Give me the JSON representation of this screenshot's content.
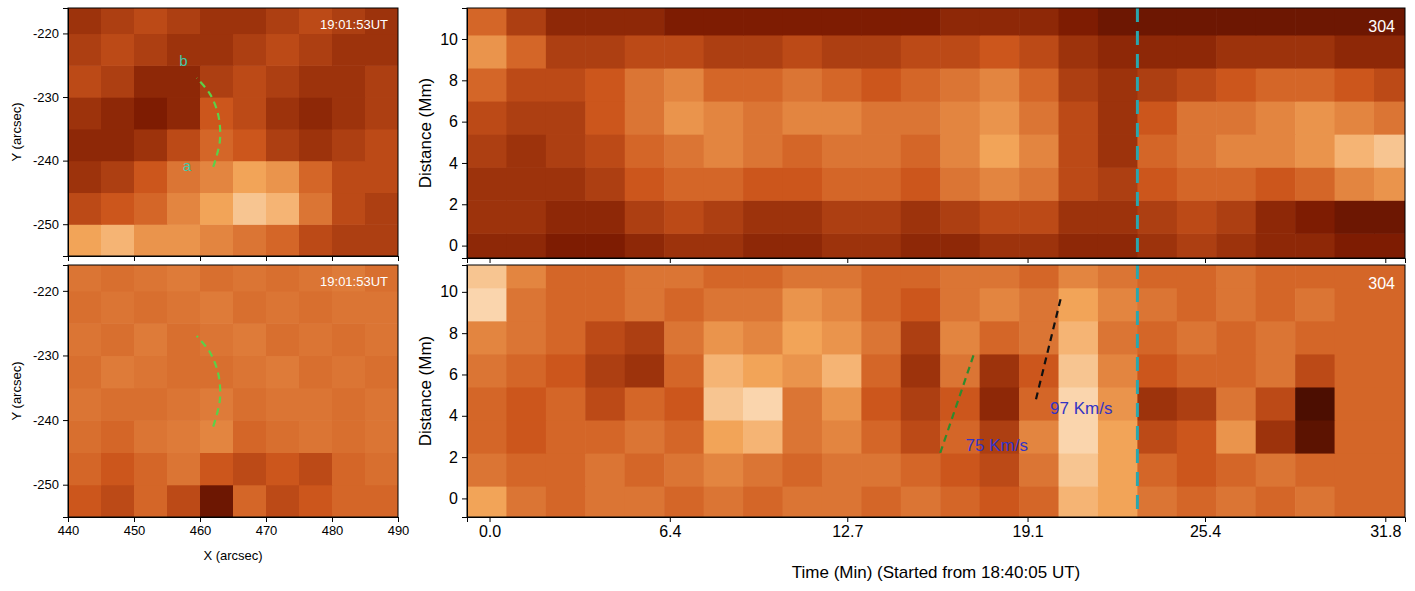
{
  "chart_data": [
    {
      "type": "heatmap",
      "title": "19:01:53UT",
      "ylabel": "Y (arcsec)",
      "xlim": [
        440,
        490
      ],
      "ylim": [
        -255,
        -216
      ],
      "xticks": [
        440,
        450,
        460,
        470,
        480,
        490
      ],
      "yticks": [
        -220,
        -230,
        -240,
        -250
      ],
      "tick_labels": "y",
      "zlim": [
        0,
        1
      ],
      "x_edges": [
        440,
        445,
        450,
        455,
        460,
        465,
        470,
        475,
        480,
        485,
        490
      ],
      "y_edges": [
        -255,
        -250,
        -245,
        -240,
        -235,
        -230,
        -225,
        -220,
        -215
      ],
      "cells": [
        [
          0.75,
          0.8,
          0.7,
          0.7,
          0.65,
          0.6,
          0.55,
          0.45,
          0.4,
          0.4
        ],
        [
          0.45,
          0.5,
          0.55,
          0.65,
          0.75,
          0.85,
          0.8,
          0.6,
          0.45,
          0.4
        ],
        [
          0.35,
          0.4,
          0.5,
          0.6,
          0.65,
          0.75,
          0.7,
          0.55,
          0.45,
          0.45
        ],
        [
          0.3,
          0.3,
          0.35,
          0.45,
          0.55,
          0.5,
          0.4,
          0.35,
          0.4,
          0.45
        ],
        [
          0.35,
          0.3,
          0.25,
          0.3,
          0.5,
          0.45,
          0.35,
          0.3,
          0.35,
          0.4
        ],
        [
          0.45,
          0.4,
          0.3,
          0.3,
          0.4,
          0.45,
          0.4,
          0.35,
          0.35,
          0.4
        ],
        [
          0.4,
          0.45,
          0.4,
          0.35,
          0.35,
          0.4,
          0.45,
          0.4,
          0.35,
          0.35
        ],
        [
          0.35,
          0.4,
          0.45,
          0.4,
          0.35,
          0.35,
          0.4,
          0.45,
          0.4,
          0.35
        ]
      ],
      "series": [
        {
          "type": "line",
          "color": "#5cd048",
          "line_style": "dashed",
          "x": [
            462.0,
            463.0,
            462.8,
            461.5,
            459.5
          ],
          "values": [
            -241,
            -237,
            -233,
            -229.5,
            -227
          ]
        }
      ],
      "annotations": [
        {
          "text": "a",
          "x": 458.0,
          "y": -241.0,
          "color": "#44c8a8"
        },
        {
          "text": "b",
          "x": 457.5,
          "y": -224.5,
          "color": "#44c8a8"
        }
      ]
    },
    {
      "type": "heatmap",
      "title": "19:01:53UT",
      "xlabel": "X (arcsec)",
      "ylabel": "Y (arcsec)",
      "xlim": [
        440,
        490
      ],
      "ylim": [
        -255,
        -216
      ],
      "xticks": [
        440,
        450,
        460,
        470,
        480,
        490
      ],
      "yticks": [
        -220,
        -230,
        -240,
        -250
      ],
      "zlim": [
        0,
        1
      ],
      "x_edges": [
        440,
        445,
        450,
        455,
        460,
        465,
        470,
        475,
        480,
        485,
        490
      ],
      "y_edges": [
        -255,
        -250,
        -245,
        -240,
        -235,
        -230,
        -225,
        -220,
        -215
      ],
      "cells": [
        [
          0.5,
          0.45,
          0.55,
          0.45,
          0.2,
          0.55,
          0.45,
          0.5,
          0.55,
          0.55
        ],
        [
          0.55,
          0.5,
          0.55,
          0.6,
          0.5,
          0.45,
          0.5,
          0.45,
          0.55,
          0.58
        ],
        [
          0.58,
          0.55,
          0.6,
          0.62,
          0.65,
          0.55,
          0.58,
          0.6,
          0.58,
          0.6
        ],
        [
          0.6,
          0.58,
          0.58,
          0.6,
          0.62,
          0.58,
          0.6,
          0.6,
          0.58,
          0.6
        ],
        [
          0.58,
          0.62,
          0.6,
          0.58,
          0.58,
          0.6,
          0.62,
          0.58,
          0.6,
          0.58
        ],
        [
          0.6,
          0.58,
          0.62,
          0.58,
          0.6,
          0.62,
          0.58,
          0.6,
          0.58,
          0.6
        ],
        [
          0.58,
          0.6,
          0.58,
          0.6,
          0.62,
          0.58,
          0.6,
          0.58,
          0.6,
          0.6
        ],
        [
          0.6,
          0.58,
          0.6,
          0.62,
          0.58,
          0.6,
          0.58,
          0.6,
          0.62,
          0.58
        ]
      ],
      "series": [
        {
          "type": "line",
          "color": "#5cd048",
          "line_style": "dashed",
          "x": [
            462.0,
            463.0,
            462.8,
            461.5,
            459.5
          ],
          "values": [
            -241,
            -237,
            -233,
            -229.5,
            -227
          ]
        }
      ]
    },
    {
      "type": "heatmap",
      "title": "304",
      "ylabel": "Distance (Mm)",
      "xlim": [
        -0.8,
        32.5
      ],
      "ylim": [
        -0.6,
        11.5
      ],
      "xticks": [
        {
          "value": 0,
          "label": "0.0"
        },
        6.4,
        12.7,
        19.1,
        25.4,
        31.8
      ],
      "yticks": [
        0,
        2,
        4,
        6,
        8,
        10
      ],
      "tick_labels": "y",
      "zlim": [
        0,
        1
      ],
      "x_edges": [
        -0.8,
        0.6,
        2.0,
        3.4,
        4.8,
        6.2,
        7.6,
        9.0,
        10.4,
        11.8,
        13.2,
        14.6,
        16.0,
        17.4,
        18.8,
        20.2,
        21.6,
        23.0,
        24.4,
        25.8,
        27.2,
        28.6,
        30.0,
        31.4,
        32.8
      ],
      "y_edges": [
        -1.0,
        0.6,
        2.2,
        3.8,
        5.4,
        7.0,
        8.6,
        10.2,
        11.8
      ],
      "cells": [
        [
          0.3,
          0.3,
          0.25,
          0.25,
          0.3,
          0.35,
          0.35,
          0.3,
          0.3,
          0.35,
          0.35,
          0.3,
          0.3,
          0.35,
          0.35,
          0.3,
          0.3,
          0.35,
          0.4,
          0.35,
          0.3,
          0.3,
          0.25,
          0.25
        ],
        [
          0.35,
          0.35,
          0.3,
          0.3,
          0.4,
          0.45,
          0.4,
          0.35,
          0.35,
          0.4,
          0.4,
          0.35,
          0.4,
          0.45,
          0.45,
          0.35,
          0.35,
          0.4,
          0.45,
          0.4,
          0.3,
          0.25,
          0.2,
          0.2
        ],
        [
          0.35,
          0.35,
          0.35,
          0.4,
          0.5,
          0.55,
          0.55,
          0.5,
          0.5,
          0.55,
          0.55,
          0.5,
          0.6,
          0.65,
          0.6,
          0.45,
          0.4,
          0.5,
          0.55,
          0.55,
          0.5,
          0.55,
          0.65,
          0.7
        ],
        [
          0.4,
          0.35,
          0.4,
          0.45,
          0.55,
          0.6,
          0.65,
          0.6,
          0.55,
          0.6,
          0.6,
          0.55,
          0.65,
          0.75,
          0.65,
          0.45,
          0.35,
          0.55,
          0.6,
          0.65,
          0.65,
          0.7,
          0.8,
          0.85
        ],
        [
          0.45,
          0.4,
          0.4,
          0.5,
          0.6,
          0.7,
          0.65,
          0.6,
          0.65,
          0.65,
          0.6,
          0.6,
          0.65,
          0.7,
          0.6,
          0.45,
          0.35,
          0.5,
          0.6,
          0.6,
          0.65,
          0.7,
          0.65,
          0.6
        ],
        [
          0.55,
          0.45,
          0.45,
          0.5,
          0.6,
          0.65,
          0.55,
          0.55,
          0.6,
          0.55,
          0.5,
          0.55,
          0.6,
          0.65,
          0.55,
          0.4,
          0.35,
          0.4,
          0.45,
          0.5,
          0.55,
          0.55,
          0.5,
          0.45
        ],
        [
          0.7,
          0.55,
          0.4,
          0.4,
          0.45,
          0.45,
          0.4,
          0.4,
          0.45,
          0.4,
          0.4,
          0.45,
          0.45,
          0.5,
          0.45,
          0.35,
          0.3,
          0.3,
          0.3,
          0.35,
          0.35,
          0.35,
          0.3,
          0.3
        ],
        [
          0.55,
          0.4,
          0.3,
          0.3,
          0.3,
          0.25,
          0.25,
          0.25,
          0.25,
          0.25,
          0.25,
          0.25,
          0.3,
          0.3,
          0.3,
          0.25,
          0.2,
          0.2,
          0.2,
          0.2,
          0.2,
          0.2,
          0.2,
          0.2
        ]
      ],
      "series": [
        {
          "type": "vline",
          "color": "#2aa6ad",
          "line_style": "dashed",
          "x": [
            23.0
          ]
        }
      ]
    },
    {
      "type": "heatmap",
      "title": "304",
      "ylabel": "Distance (Mm)",
      "xlabel": "Time (Min) (Started from 18:40:05 UT)",
      "xlim": [
        -0.8,
        32.5
      ],
      "ylim": [
        -0.9,
        11.3
      ],
      "xticks": [
        {
          "value": 0,
          "label": "0.0"
        },
        6.4,
        12.7,
        19.1,
        25.4,
        31.8
      ],
      "yticks": [
        0,
        2,
        4,
        6,
        8,
        10
      ],
      "zlim": [
        0,
        1
      ],
      "x_edges": [
        -0.8,
        0.6,
        2.0,
        3.4,
        4.8,
        6.2,
        7.6,
        9.0,
        10.4,
        11.8,
        13.2,
        14.6,
        16.0,
        17.4,
        18.8,
        20.2,
        21.6,
        23.0,
        24.4,
        25.8,
        27.2,
        28.6,
        30.0,
        31.4,
        32.8
      ],
      "y_edges": [
        -1.0,
        0.6,
        2.2,
        3.8,
        5.4,
        7.0,
        8.6,
        10.2,
        11.8
      ],
      "cells": [
        [
          0.75,
          0.6,
          0.55,
          0.6,
          0.6,
          0.55,
          0.6,
          0.55,
          0.6,
          0.6,
          0.55,
          0.6,
          0.55,
          0.5,
          0.55,
          0.8,
          0.75,
          0.6,
          0.55,
          0.6,
          0.55,
          0.6,
          0.55,
          0.55
        ],
        [
          0.6,
          0.55,
          0.55,
          0.6,
          0.55,
          0.6,
          0.65,
          0.6,
          0.55,
          0.6,
          0.6,
          0.55,
          0.5,
          0.45,
          0.6,
          0.85,
          0.75,
          0.55,
          0.5,
          0.55,
          0.6,
          0.55,
          0.55,
          0.55
        ],
        [
          0.55,
          0.5,
          0.55,
          0.55,
          0.6,
          0.55,
          0.75,
          0.8,
          0.6,
          0.65,
          0.55,
          0.45,
          0.55,
          0.4,
          0.65,
          0.9,
          0.75,
          0.45,
          0.5,
          0.7,
          0.35,
          0.15,
          0.55,
          0.55
        ],
        [
          0.55,
          0.5,
          0.55,
          0.45,
          0.55,
          0.5,
          0.85,
          0.9,
          0.6,
          0.7,
          0.5,
          0.4,
          0.5,
          0.3,
          0.55,
          0.9,
          0.7,
          0.35,
          0.4,
          0.6,
          0.45,
          0.1,
          0.55,
          0.55
        ],
        [
          0.6,
          0.55,
          0.5,
          0.4,
          0.35,
          0.55,
          0.8,
          0.75,
          0.7,
          0.8,
          0.55,
          0.35,
          0.6,
          0.35,
          0.5,
          0.85,
          0.65,
          0.5,
          0.55,
          0.55,
          0.6,
          0.45,
          0.55,
          0.55
        ],
        [
          0.65,
          0.6,
          0.55,
          0.45,
          0.4,
          0.6,
          0.7,
          0.65,
          0.75,
          0.7,
          0.6,
          0.4,
          0.65,
          0.55,
          0.6,
          0.8,
          0.6,
          0.55,
          0.6,
          0.55,
          0.6,
          0.55,
          0.55,
          0.55
        ],
        [
          0.9,
          0.6,
          0.55,
          0.55,
          0.6,
          0.55,
          0.6,
          0.6,
          0.7,
          0.65,
          0.55,
          0.5,
          0.6,
          0.65,
          0.6,
          0.75,
          0.65,
          0.6,
          0.55,
          0.6,
          0.55,
          0.6,
          0.55,
          0.55
        ],
        [
          0.85,
          0.65,
          0.55,
          0.55,
          0.6,
          0.6,
          0.55,
          0.55,
          0.6,
          0.6,
          0.55,
          0.55,
          0.6,
          0.6,
          0.55,
          0.65,
          0.6,
          0.55,
          0.55,
          0.6,
          0.55,
          0.55,
          0.55,
          0.55
        ]
      ],
      "series": [
        {
          "type": "line",
          "color": "#2e8b2e",
          "line_style": "dashed",
          "x": [
            16.0,
            17.2
          ],
          "values": [
            2.2,
            7.0
          ]
        },
        {
          "type": "line",
          "color": "#111111",
          "line_style": "dashed",
          "x": [
            19.4,
            20.3
          ],
          "values": [
            4.8,
            9.8
          ]
        },
        {
          "type": "vline",
          "color": "#2aa6ad",
          "line_style": "dashed",
          "x": [
            23.0
          ]
        }
      ],
      "annotations": [
        {
          "text": "75 Km/s",
          "x": 16.9,
          "y": 2.5,
          "color": "#3434c4"
        },
        {
          "text": "97 Km/s",
          "x": 19.9,
          "y": 4.3,
          "color": "#3434c4"
        }
      ]
    }
  ]
}
